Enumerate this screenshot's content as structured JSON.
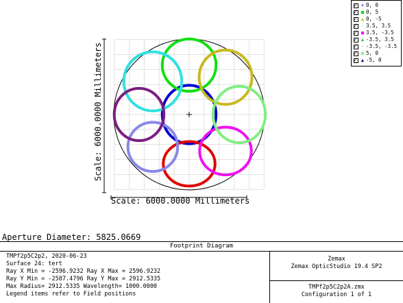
{
  "legend": [
    {
      "label": "0, 0",
      "color": "#0000ff",
      "marker": "+"
    },
    {
      "label": "0, 5",
      "color": "#00e000",
      "marker": "■"
    },
    {
      "label": "0, -5",
      "color": "#c8b400",
      "marker": "▲"
    },
    {
      "label": "3.5, 3.5",
      "color": "#00e8e8",
      "marker": "·"
    },
    {
      "label": "3.5, -3.5",
      "color": "#ff00ff",
      "marker": "■"
    },
    {
      "label": "-3.5, 3.5",
      "color": "#40c040",
      "marker": "▲"
    },
    {
      "label": "-3.5, -3.5",
      "color": "#7a7a7a",
      "marker": "·"
    },
    {
      "label": "5, 0",
      "color": "#90ee90",
      "marker": "■"
    },
    {
      "label": "-5, 0",
      "color": "#000080",
      "marker": "▲"
    }
  ],
  "axes": {
    "ylabel": "Scale: 6000.0000 Millimeters",
    "xlabel": "Scale: 6000.0000 Millimeters"
  },
  "aperture": "Aperture Diameter: 5825.0669",
  "info": {
    "title": "Footprint Diagram",
    "lines": [
      "TMPf2p5C2p2, 2020-06-23",
      "Surface 24: tert",
      "Ray X Min = -2596.9232 Ray X Max = 2596.9232",
      "Ray Y Min = -2587.4796 Ray Y Max = 2912.5335",
      "Max Radius= 2912.5335 Wavelength= 1000.0000",
      "Legend items refer to Field positions"
    ],
    "company": "Zemax",
    "product": "Zemax OpticStudio 19.4 SP2",
    "file": "TMPf2p5C2p2A.zmx",
    "config": "Configuration 1 of 1"
  },
  "chart_data": {
    "type": "scatter",
    "title": "Footprint Diagram",
    "xlabel": "Scale: 6000.0000 Millimeters",
    "ylabel": "Scale: 6000.0000 Millimeters",
    "xlim": [
      -3000,
      3000
    ],
    "ylim": [
      -3000,
      3000
    ],
    "grid": true,
    "legend_position": "top-right",
    "aperture_radius": 2912.5,
    "series": [
      {
        "name": "0, 0",
        "color": "#0000d0",
        "cx": 0,
        "cy": 0,
        "rx": 1040,
        "ry": 1130
      },
      {
        "name": "0, 5",
        "color": "#10e010",
        "cx": 0,
        "cy": 1905,
        "rx": 1040,
        "ry": 1010
      },
      {
        "name": "0, -5",
        "color": "#e00000",
        "cx": 0,
        "cy": -1905,
        "rx": 1000,
        "ry": 860
      },
      {
        "name": "3.5, 3.5",
        "color": "#c8b820",
        "cx": 1405,
        "cy": 1440,
        "rx": 1020,
        "ry": 1050
      },
      {
        "name": "3.5, -3.5",
        "color": "#f010f0",
        "cx": 1405,
        "cy": -1410,
        "rx": 1000,
        "ry": 920
      },
      {
        "name": "-3.5, 3.5",
        "color": "#30e0e0",
        "cx": -1405,
        "cy": 1280,
        "rx": 1120,
        "ry": 1140
      },
      {
        "name": "-3.5, -3.5",
        "color": "#8888e8",
        "cx": -1405,
        "cy": -1250,
        "rx": 960,
        "ry": 950
      },
      {
        "name": "5, 0",
        "color": "#80ee80",
        "cx": 1935,
        "cy": 0,
        "rx": 1010,
        "ry": 1090
      },
      {
        "name": "-5, 0",
        "color": "#7a1e80",
        "cx": -1935,
        "cy": 0,
        "rx": 960,
        "ry": 1010
      }
    ]
  }
}
